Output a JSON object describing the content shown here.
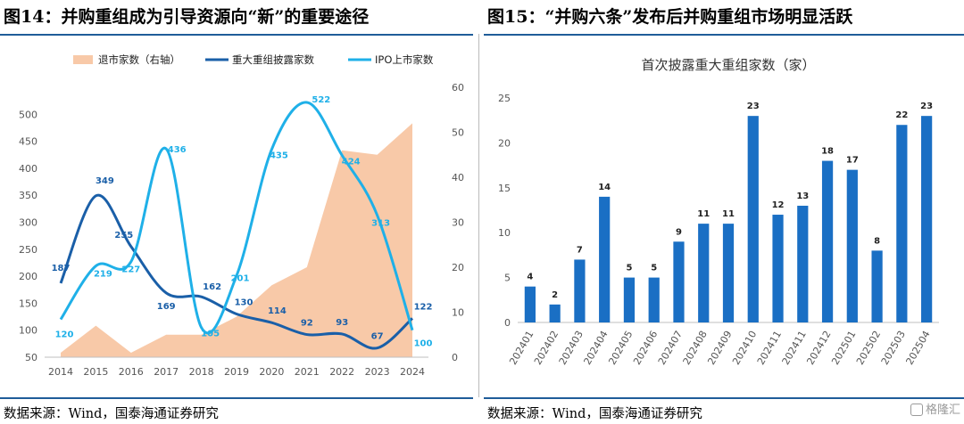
{
  "left": {
    "title": "图14：并购重组成为引导资源向“新”的重要途径",
    "source": "数据来源：Wind，国泰海通证券研究"
  },
  "right": {
    "title": "图15：“并购六条”发布后并购重组市场明显活跃",
    "source": "数据来源：Wind，国泰海通证券研究"
  },
  "watermark": "格隆汇",
  "chart_data": [
    {
      "type": "line",
      "title": "",
      "categories": [
        "2014",
        "2015",
        "2016",
        "2017",
        "2018",
        "2019",
        "2020",
        "2021",
        "2022",
        "2023",
        "2024"
      ],
      "series": [
        {
          "name": "退市家数（右轴）",
          "chart": "area",
          "axis": "right",
          "color": "#f8c9a8",
          "values": [
            1,
            7,
            1,
            5,
            5,
            9,
            16,
            20,
            46,
            45,
            52
          ]
        },
        {
          "name": "重大重组披露家数",
          "chart": "line",
          "axis": "left",
          "color": "#1a5fa8",
          "values": [
            187,
            349,
            255,
            169,
            162,
            130,
            114,
            92,
            93,
            67,
            122
          ]
        },
        {
          "name": "IPO上市家数",
          "chart": "line",
          "axis": "left",
          "color": "#1fb0e8",
          "values": [
            120,
            219,
            227,
            436,
            105,
            201,
            435,
            522,
            424,
            313,
            100
          ]
        }
      ],
      "left_axis": {
        "ticks": [
          50,
          100,
          150,
          200,
          250,
          300,
          350,
          400,
          450,
          500
        ],
        "ylim": [
          50,
          550
        ]
      },
      "right_axis": {
        "ticks": [
          0,
          10,
          20,
          30,
          40,
          50,
          60
        ],
        "ylim": [
          0,
          60
        ]
      },
      "legend_position": "top",
      "grid": false
    },
    {
      "type": "bar",
      "title": "首次披露重大重组家数（家）",
      "categories": [
        "202401",
        "202402",
        "202403",
        "202404",
        "202405",
        "202406",
        "202407",
        "202408",
        "202409",
        "202410",
        "202411",
        "202411",
        "202412",
        "202501",
        "202502",
        "202503",
        "202504"
      ],
      "values": [
        4,
        2,
        7,
        14,
        5,
        5,
        9,
        11,
        11,
        23,
        12,
        13,
        18,
        17,
        8,
        22,
        23
      ],
      "color": "#1a6fc4",
      "ylim": [
        0,
        25
      ],
      "yticks": [
        0,
        5,
        10,
        15,
        20,
        25
      ],
      "grid": false
    }
  ]
}
